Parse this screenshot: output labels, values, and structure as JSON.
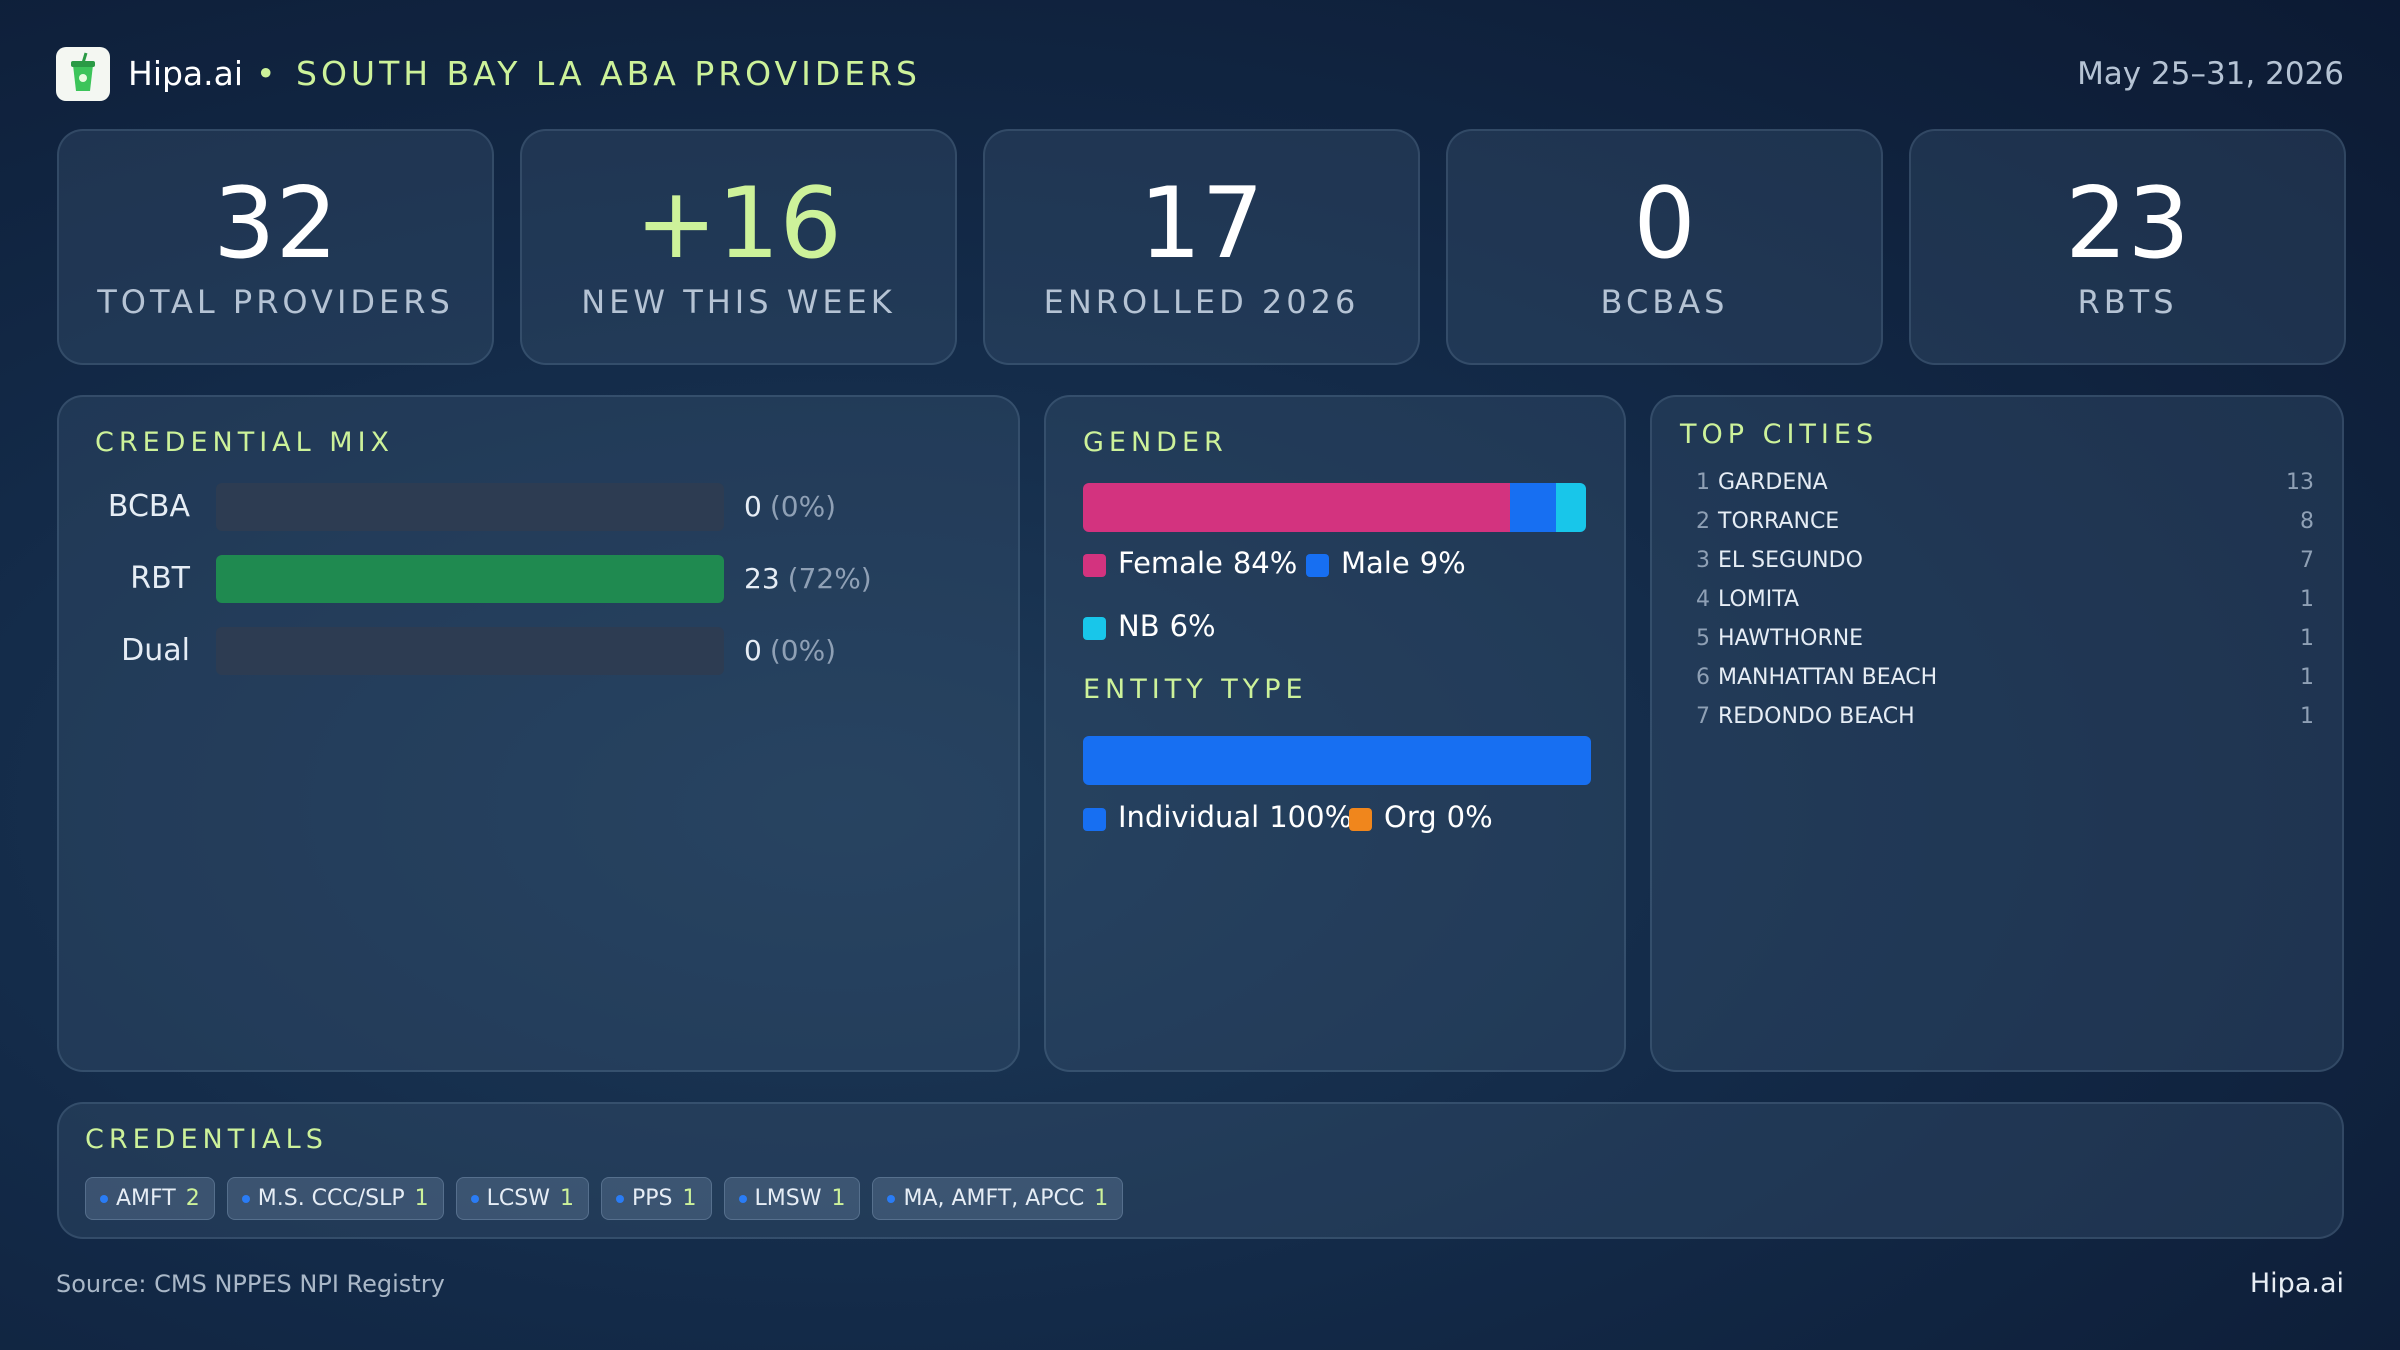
{
  "header": {
    "brand": "Hipa.ai",
    "title": "SOUTH BAY LA ABA PROVIDERS",
    "date": "May 25–31, 2026"
  },
  "kpis": [
    {
      "value": "32",
      "label": "TOTAL  PROVIDERS"
    },
    {
      "value": "+16",
      "label": "NEW THIS WEEK"
    },
    {
      "value": "17",
      "label": "ENROLLED 2026"
    },
    {
      "value": "0",
      "label": "BCBAS"
    },
    {
      "value": "23",
      "label": "RBTS"
    }
  ],
  "credential_mix": {
    "title": "CREDENTIAL  MIX",
    "rows": [
      {
        "label": "BCBA",
        "count": 0,
        "percent_label": "(0%)",
        "color": "#1f8a50"
      },
      {
        "label": "RBT",
        "count": 23,
        "percent_label": "(72%)",
        "color": "#1f8a50"
      },
      {
        "label": "Dual",
        "count": 0,
        "percent_label": "(0%)",
        "color": "#1f8a50"
      }
    ]
  },
  "gender": {
    "title": "GENDER",
    "segments": [
      {
        "name": "Female",
        "value": 84,
        "value_label": "84%",
        "color": "#d3337f"
      },
      {
        "name": "Male",
        "value": 9,
        "value_label": "9%",
        "color": "#176ff2"
      },
      {
        "name": "NB",
        "value": 6,
        "value_label": "6%",
        "color": "#18c6ea"
      }
    ]
  },
  "entity_type": {
    "title": "ENTITY  TYPE",
    "segments": [
      {
        "name": "Individual",
        "value": 100,
        "value_label": "100%",
        "color": "#176ff2"
      },
      {
        "name": "Org",
        "value": 0,
        "value_label": "0%",
        "color": "#f0861c"
      }
    ]
  },
  "top_cities": {
    "title": "TOP  CITIES",
    "rows": [
      {
        "rank": 1,
        "name": "GARDENA",
        "count": 13
      },
      {
        "rank": 2,
        "name": "TORRANCE",
        "count": 8
      },
      {
        "rank": 3,
        "name": "EL SEGUNDO",
        "count": 7
      },
      {
        "rank": 4,
        "name": "LOMITA",
        "count": 1
      },
      {
        "rank": 5,
        "name": "HAWTHORNE",
        "count": 1
      },
      {
        "rank": 6,
        "name": "MANHATTAN  BEACH",
        "count": 1
      },
      {
        "rank": 7,
        "name": "REDONDO BEACH",
        "count": 1
      }
    ]
  },
  "credentials": {
    "title": "CREDENTIALS",
    "items": [
      {
        "name": "AMFT",
        "count": 2
      },
      {
        "name": "M.S. CCC/SLP",
        "count": 1
      },
      {
        "name": "LCSW",
        "count": 1
      },
      {
        "name": "PPS",
        "count": 1
      },
      {
        "name": "LMSW",
        "count": 1
      },
      {
        "name": "MA, AMFT, APCC",
        "count": 1
      }
    ]
  },
  "footer": {
    "source": "Source: CMS NPPES NPI Registry",
    "brand": "Hipa.ai"
  }
}
